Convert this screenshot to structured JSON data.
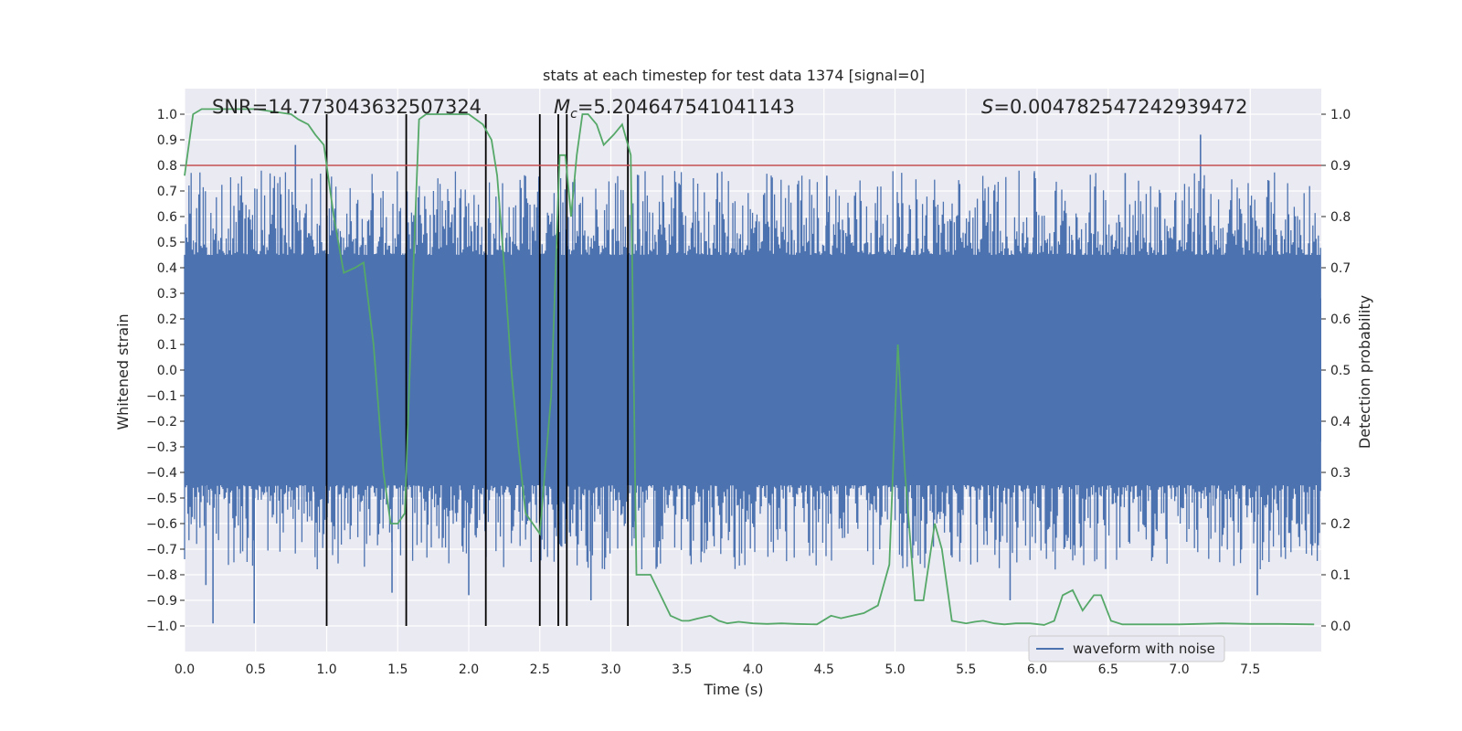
{
  "chart_data": {
    "type": "line",
    "title": "stats at each timestep for test data 1374 [signal=0]",
    "xlabel": "Time (s)",
    "ylabel": "Whitened strain",
    "y2label": "Detection probability",
    "xlim": [
      0,
      8
    ],
    "ylim": [
      -1.1,
      1.1
    ],
    "y2lim": [
      -0.05,
      1.05
    ],
    "x_ticks": [
      "0.0",
      "0.5",
      "1.0",
      "1.5",
      "2.0",
      "2.5",
      "3.0",
      "3.5",
      "4.0",
      "4.5",
      "5.0",
      "5.5",
      "6.0",
      "6.5",
      "7.0",
      "7.5"
    ],
    "y_ticks": [
      "1.0",
      "0.9",
      "0.8",
      "0.7",
      "0.6",
      "0.5",
      "0.4",
      "0.3",
      "0.2",
      "0.1",
      "0.0",
      "−0.1",
      "−0.2",
      "−0.3",
      "−0.4",
      "−0.5",
      "−0.6",
      "−0.7",
      "−0.8",
      "−0.9",
      "−1.0"
    ],
    "y2_ticks": [
      "1.0",
      "0.9",
      "0.8",
      "0.7",
      "0.6",
      "0.5",
      "0.4",
      "0.3",
      "0.2",
      "0.1",
      "0.0"
    ],
    "grid": true,
    "legend_position": "lower-right",
    "annotations": {
      "snr": "SNR=14.773043632507324",
      "mc_symbol": "M",
      "mc_sub": "c",
      "mc_value": "=5.204647541041143",
      "s_symbol": "S",
      "s_value": "=0.004782547242939472"
    },
    "threshold": {
      "value": 0.9,
      "axis": "right",
      "color": "#c44e52"
    },
    "vlines": [
      1.0,
      1.56,
      2.12,
      2.5,
      2.63,
      2.69,
      3.12
    ],
    "series": [
      {
        "name": "waveform with noise",
        "axis": "left",
        "color": "#4c72b0",
        "style": "noise-band",
        "envelope_typical": [
          -0.45,
          0.45
        ],
        "peaks": [
          {
            "x": 0.78,
            "y": 0.88
          },
          {
            "x": 3.48,
            "y": 0.73
          },
          {
            "x": 3.75,
            "y": 0.77
          },
          {
            "x": 4.52,
            "y": 0.76
          },
          {
            "x": 5.98,
            "y": 0.77
          },
          {
            "x": 6.62,
            "y": 0.77
          },
          {
            "x": 7.15,
            "y": 0.92
          },
          {
            "x": 0.2,
            "y": -0.99
          },
          {
            "x": 0.49,
            "y": -0.99
          },
          {
            "x": 2.86,
            "y": -0.9
          },
          {
            "x": 5.81,
            "y": -0.9
          },
          {
            "x": 7.55,
            "y": -0.88
          },
          {
            "x": 0.15,
            "y": -0.84
          },
          {
            "x": 1.46,
            "y": -0.87
          },
          {
            "x": 2.0,
            "y": -0.88
          }
        ]
      },
      {
        "name": "",
        "axis": "right",
        "color": "#55a868",
        "x": [
          0.0,
          0.06,
          0.12,
          0.25,
          0.5,
          0.75,
          0.8,
          0.87,
          0.92,
          0.98,
          1.05,
          1.12,
          1.2,
          1.26,
          1.33,
          1.4,
          1.45,
          1.5,
          1.55,
          1.61,
          1.65,
          1.7,
          1.8,
          1.9,
          2.0,
          2.05,
          2.1,
          2.16,
          2.2,
          2.25,
          2.3,
          2.35,
          2.4,
          2.45,
          2.5,
          2.55,
          2.58,
          2.64,
          2.68,
          2.72,
          2.76,
          2.8,
          2.84,
          2.9,
          2.95,
          3.02,
          3.08,
          3.14,
          3.18,
          3.22,
          3.28,
          3.35,
          3.42,
          3.5,
          3.55,
          3.62,
          3.7,
          3.76,
          3.82,
          3.9,
          4.0,
          4.1,
          4.2,
          4.3,
          4.45,
          4.55,
          4.62,
          4.7,
          4.78,
          4.88,
          4.96,
          5.02,
          5.07,
          5.14,
          5.2,
          5.28,
          5.33,
          5.4,
          5.5,
          5.56,
          5.62,
          5.7,
          5.77,
          5.85,
          5.95,
          6.05,
          6.12,
          6.18,
          6.25,
          6.32,
          6.4,
          6.45,
          6.52,
          6.6,
          6.7,
          7.0,
          7.3,
          7.5,
          7.7,
          7.95
        ],
        "values": [
          0.88,
          1.0,
          1.01,
          1.01,
          1.01,
          1.0,
          0.99,
          0.98,
          0.96,
          0.94,
          0.8,
          0.69,
          0.7,
          0.71,
          0.55,
          0.3,
          0.2,
          0.2,
          0.22,
          0.7,
          0.99,
          1.0,
          1.0,
          1.0,
          1.0,
          0.99,
          0.98,
          0.95,
          0.88,
          0.7,
          0.5,
          0.35,
          0.22,
          0.2,
          0.18,
          0.35,
          0.45,
          0.92,
          0.92,
          0.8,
          0.92,
          1.0,
          1.0,
          0.98,
          0.94,
          0.96,
          0.98,
          0.92,
          0.1,
          0.1,
          0.1,
          0.06,
          0.02,
          0.01,
          0.01,
          0.015,
          0.02,
          0.01,
          0.005,
          0.008,
          0.005,
          0.004,
          0.005,
          0.004,
          0.003,
          0.02,
          0.015,
          0.02,
          0.025,
          0.04,
          0.12,
          0.55,
          0.3,
          0.05,
          0.05,
          0.2,
          0.15,
          0.01,
          0.005,
          0.008,
          0.01,
          0.005,
          0.003,
          0.005,
          0.005,
          0.002,
          0.01,
          0.06,
          0.07,
          0.03,
          0.06,
          0.06,
          0.01,
          0.003,
          0.003,
          0.003,
          0.005,
          0.004,
          0.004,
          0.003
        ]
      }
    ]
  }
}
